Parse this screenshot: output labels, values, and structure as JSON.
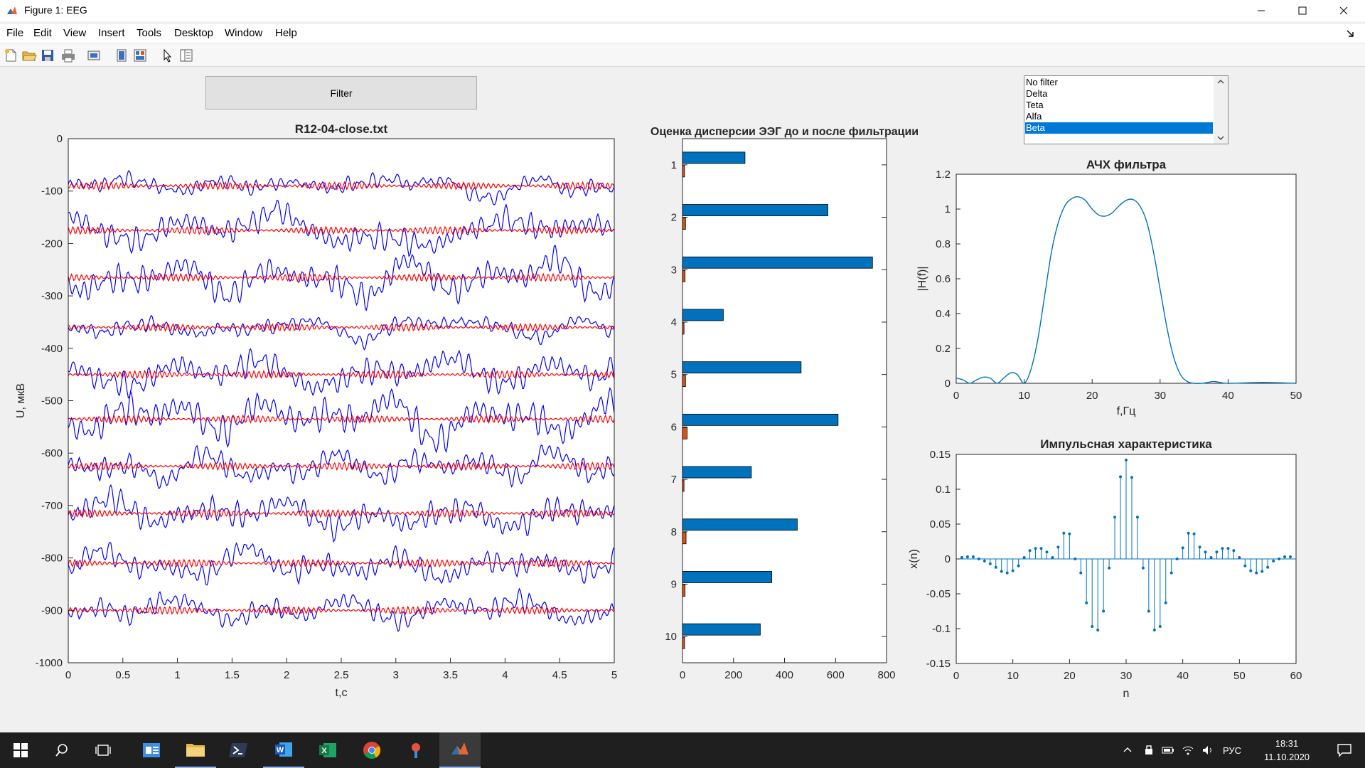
{
  "window": {
    "title": "Figure 1: EEG"
  },
  "menu": [
    "File",
    "Edit",
    "View",
    "Insert",
    "Tools",
    "Desktop",
    "Window",
    "Help"
  ],
  "toolbar_icons": [
    "new-figure-icon",
    "open-icon",
    "save-icon",
    "print-icon",
    "print-preview-icon",
    "hide-plot-tools-icon",
    "show-plot-tools-icon",
    "edit-plot-icon",
    "property-inspector-icon"
  ],
  "filter_button": {
    "label": "Filter"
  },
  "filter_list": {
    "options": [
      "No filter",
      "Delta",
      "Teta",
      "Alfa",
      "Beta"
    ],
    "selected": "Beta"
  },
  "colors": {
    "accent": "#0078d7",
    "raw_signal": "#0000ff",
    "filtered_signal": "#ff0000",
    "bar_before": "#0072bd",
    "bar_after": "#d95319",
    "plot_line": "#0072bd"
  },
  "chart_data": [
    {
      "type": "line",
      "title": "R12-04-close.txt",
      "xlabel": "t,c",
      "ylabel": "U, мкВ",
      "xlim": [
        0,
        5
      ],
      "ylim": [
        -1000,
        0
      ],
      "xticks": [
        "0",
        "0.5",
        "1",
        "1.5",
        "2",
        "2.5",
        "3",
        "3.5",
        "4",
        "4.5",
        "5"
      ],
      "yticks": [
        "0",
        "-100",
        "-200",
        "-300",
        "-400",
        "-500",
        "-600",
        "-700",
        "-800",
        "-900",
        "-1000"
      ],
      "channel_offsets": [
        -90,
        -175,
        -265,
        -360,
        -450,
        -535,
        -625,
        -715,
        -810,
        -900
      ],
      "series": [
        {
          "values": "raw EEG channels 1-10"
        },
        {
          "values": "filtered EEG channels 1-10"
        }
      ]
    },
    {
      "type": "bar",
      "title": "Оценка дисперсии ЭЭГ до и после фильтрации",
      "orientation": "horizontal",
      "categories": [
        "1",
        "2",
        "3",
        "4",
        "5",
        "6",
        "7",
        "8",
        "9",
        "10"
      ],
      "xlim": [
        0,
        800
      ],
      "xticks": [
        "0",
        "200",
        "400",
        "600",
        "800"
      ],
      "series": [
        {
          "values": [
            245,
            570,
            745,
            160,
            465,
            610,
            270,
            450,
            350,
            305
          ]
        },
        {
          "values": [
            8,
            12,
            10,
            6,
            12,
            18,
            6,
            14,
            10,
            8
          ]
        }
      ]
    },
    {
      "type": "line",
      "title": "АЧХ фильтра",
      "xlabel": "f,Гц",
      "ylabel": "|H(f)|",
      "xlim": [
        0,
        50
      ],
      "ylim": [
        0,
        1.2
      ],
      "xticks": [
        "0",
        "10",
        "20",
        "30",
        "40",
        "50"
      ],
      "yticks": [
        "0",
        "0.2",
        "0.4",
        "0.6",
        "0.8",
        "1",
        "1.2"
      ],
      "x": [
        0,
        1,
        2,
        3,
        4,
        5,
        6,
        7,
        8,
        9,
        10,
        11,
        12,
        13,
        14,
        15,
        16,
        17,
        18,
        19,
        20,
        21,
        22,
        23,
        24,
        25,
        26,
        27,
        28,
        29,
        30,
        31,
        32,
        33,
        34,
        35,
        36,
        37,
        38,
        40,
        45,
        50
      ],
      "y": [
        0.03,
        0.02,
        0.0,
        0.02,
        0.035,
        0.03,
        0.0,
        0.03,
        0.06,
        0.05,
        0.0,
        0.08,
        0.25,
        0.5,
        0.75,
        0.92,
        1.02,
        1.06,
        1.07,
        1.05,
        1.0,
        0.965,
        0.96,
        0.98,
        1.02,
        1.05,
        1.055,
        1.02,
        0.93,
        0.76,
        0.54,
        0.32,
        0.15,
        0.05,
        0.01,
        0.0,
        0.0,
        0.005,
        0.01,
        0.0,
        0.005,
        0.0
      ]
    },
    {
      "type": "scatter",
      "title": "Импульсная характеристика",
      "xlabel": "n",
      "ylabel": "x(n)",
      "xlim": [
        0,
        60
      ],
      "ylim": [
        -0.15,
        0.15
      ],
      "xticks": [
        "0",
        "10",
        "20",
        "30",
        "40",
        "50",
        "60"
      ],
      "yticks": [
        "0.15",
        "0.1",
        "0.05",
        "0",
        "-0.05",
        "-0.1",
        "-0.15"
      ],
      "x": [
        1,
        2,
        3,
        4,
        5,
        6,
        7,
        8,
        9,
        10,
        11,
        12,
        13,
        14,
        15,
        16,
        17,
        18,
        19,
        20,
        21,
        22,
        23,
        24,
        25,
        26,
        27,
        28,
        29,
        30,
        31,
        32,
        33,
        34,
        35,
        36,
        37,
        38,
        39,
        40,
        41,
        42,
        43,
        44,
        45,
        46,
        47,
        48,
        49,
        50,
        51,
        52,
        53,
        54,
        55,
        56,
        57,
        58,
        59
      ],
      "y": [
        0.002,
        0.003,
        0.003,
        0.0,
        -0.003,
        -0.007,
        -0.012,
        -0.018,
        -0.02,
        -0.017,
        -0.01,
        0.002,
        0.012,
        0.015,
        0.015,
        0.01,
        0.002,
        0.017,
        0.037,
        0.036,
        0.0,
        -0.02,
        -0.063,
        -0.097,
        -0.102,
        -0.075,
        -0.013,
        0.06,
        0.118,
        0.142,
        0.117,
        0.06,
        -0.013,
        -0.075,
        -0.102,
        -0.097,
        -0.063,
        -0.02,
        0.0,
        0.016,
        0.037,
        0.036,
        0.017,
        0.01,
        0.002,
        0.01,
        0.015,
        0.015,
        0.012,
        0.002,
        -0.01,
        -0.017,
        -0.02,
        -0.018,
        -0.012,
        -0.003,
        0.0,
        0.003,
        0.003
      ]
    }
  ],
  "taskbar": {
    "apps": [
      "windows-start-icon",
      "search-icon",
      "task-view-icon",
      "outlook-icon",
      "file-explorer-icon",
      "powershell-icon",
      "word-icon",
      "excel-icon",
      "chrome-icon",
      "app-icon",
      "matlab-icon"
    ],
    "language": "РУС",
    "time": "18:31",
    "date": "11.10.2020"
  }
}
